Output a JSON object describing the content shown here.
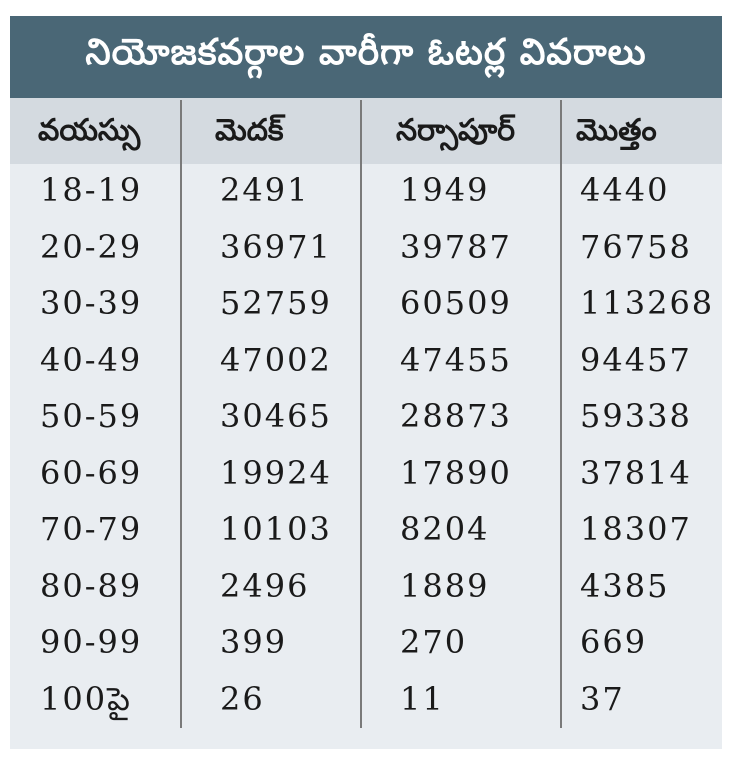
{
  "title": "నియోజకవర్గాల వారీగా ఓటర్ల వివరాలు",
  "headers": [
    "వయస్సు",
    "మెదక్",
    "నర్సాపూర్",
    "మొత్తం"
  ],
  "rows": [
    [
      "18-19",
      "2491",
      "1949",
      "4440"
    ],
    [
      "20-29",
      "36971",
      "39787",
      "76758"
    ],
    [
      "30-39",
      "52759",
      "60509",
      "113268"
    ],
    [
      "40-49",
      "47002",
      "47455",
      "94457"
    ],
    [
      "50-59",
      "30465",
      "28873",
      "59338"
    ],
    [
      "60-69",
      "19924",
      "17890",
      "37814"
    ],
    [
      "70-79",
      "10103",
      "8204",
      "18307"
    ],
    [
      "80-89",
      "2496",
      "1889",
      "4385"
    ],
    [
      "90-99",
      "399",
      "270",
      "669"
    ],
    [
      "100పై",
      "26",
      "11",
      "37"
    ]
  ],
  "colors": {
    "title_bg": "#4a6776",
    "header_bg": "#d4dae0",
    "body_bg": "#e9edf1",
    "divider": "#7a7a7a"
  }
}
